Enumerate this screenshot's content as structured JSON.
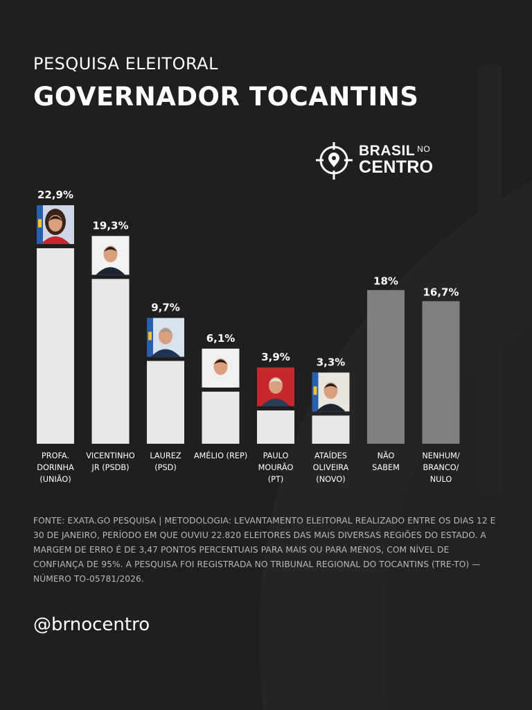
{
  "header": {
    "subtitle": "PESQUISA ELEITORAL",
    "title": "GOVERNADOR TOCANTINS"
  },
  "logo": {
    "line1": "BRASIL",
    "line1_small": "NO",
    "line2": "CENTRO",
    "icon": "crosshair-pin-icon"
  },
  "colors": {
    "background": "#1f1f1f",
    "candidate_bar": "#e8e8e8",
    "other_bar": "#808080",
    "text": "#ffffff",
    "muted_text": "#b9b9b9"
  },
  "chart_data": {
    "type": "bar",
    "title": "GOVERNADOR TOCANTINS",
    "xlabel": "",
    "ylabel": "",
    "ylim": [
      0,
      25
    ],
    "grid": false,
    "categories": [
      [
        "PROFA.",
        "DORINHA",
        "(UNIÃO)"
      ],
      [
        "VICENTINHO",
        "JR (PSDB)"
      ],
      [
        "LAUREZ",
        "(PSD)"
      ],
      [
        "AMÉLIO (REP)"
      ],
      [
        "PAULO",
        "MOURÃO",
        "(PT)"
      ],
      [
        "ATAÍDES",
        "OLIVEIRA",
        "(NOVO)"
      ],
      [
        "NÃO",
        "SABEM"
      ],
      [
        "NENHUM/",
        "BRANCO/",
        "NULO"
      ]
    ],
    "values": [
      22.9,
      19.3,
      9.7,
      6.1,
      3.9,
      3.3,
      18,
      16.7
    ],
    "value_labels": [
      "22,9%",
      "19,3%",
      "9,7%",
      "6,1%",
      "3,9%",
      "3,3%",
      "18%",
      "16,7%"
    ],
    "bar_kinds": [
      "candidate",
      "candidate",
      "candidate",
      "candidate",
      "candidate",
      "candidate",
      "other",
      "other"
    ],
    "photo_icons": [
      "candidate-photo-dorinha-icon",
      "candidate-photo-vicentinho-icon",
      "candidate-photo-laurez-icon",
      "candidate-photo-amelio-icon",
      "candidate-photo-paulo-mourao-icon",
      "candidate-photo-ataides-icon",
      "",
      ""
    ]
  },
  "footer": {
    "source": "FONTE: EXATA.GO PESQUISA | METODOLOGIA: LEVANTAMENTO ELEITORAL REALIZADO ENTRE OS DIAS 12 E 30 DE JANEIRO, PERÍODO EM QUE OUVIU 22.820 ELEITORES DAS MAIS DIVERSAS REGIÕES DO ESTADO. A MARGEM DE ERRO É DE 3,47 PONTOS PERCENTUAIS PARA MAIS OU PARA MENOS, COM NÍVEL DE CONFIANÇA DE 95%. A PESQUISA FOI REGISTRADA NO TRIBUNAL REGIONAL DO TOCANTINS (TRE-TO) — NÚMERO TO-05781/2026.",
    "handle": "@brnocentro"
  }
}
